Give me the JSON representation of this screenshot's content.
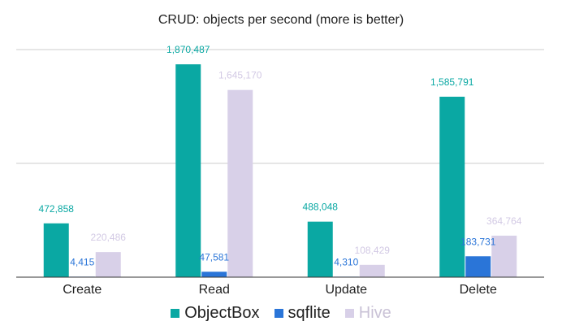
{
  "chart_data": {
    "type": "bar",
    "title": "CRUD: objects per second (more is better)",
    "categories": [
      "Create",
      "Read",
      "Update",
      "Delete"
    ],
    "series": [
      {
        "name": "ObjectBox",
        "color": "#0aa8a3",
        "label_color": "#0aa8a3",
        "values": [
          472858,
          1870487,
          488048,
          1585791
        ],
        "labels": [
          "472,858",
          "1,870,487",
          "488,048",
          "1,585,791"
        ]
      },
      {
        "name": "sqflite",
        "color": "#2a75d8",
        "label_color": "#2a75d8",
        "values": [
          4415,
          47581,
          4310,
          183731
        ],
        "labels": [
          "4,415",
          "47,581",
          "4,310",
          "183,731"
        ]
      },
      {
        "name": "Hive",
        "color": "#d8d0e8",
        "label_color": "#d2c9e4",
        "values": [
          220486,
          1645170,
          108429,
          364764
        ],
        "labels": [
          "220,486",
          "1,645,170",
          "108,429",
          "364,764"
        ]
      }
    ],
    "ylim": [
      0,
      2000000
    ],
    "grid": true,
    "legend_position": "bottom",
    "xlabel": "",
    "ylabel": ""
  }
}
